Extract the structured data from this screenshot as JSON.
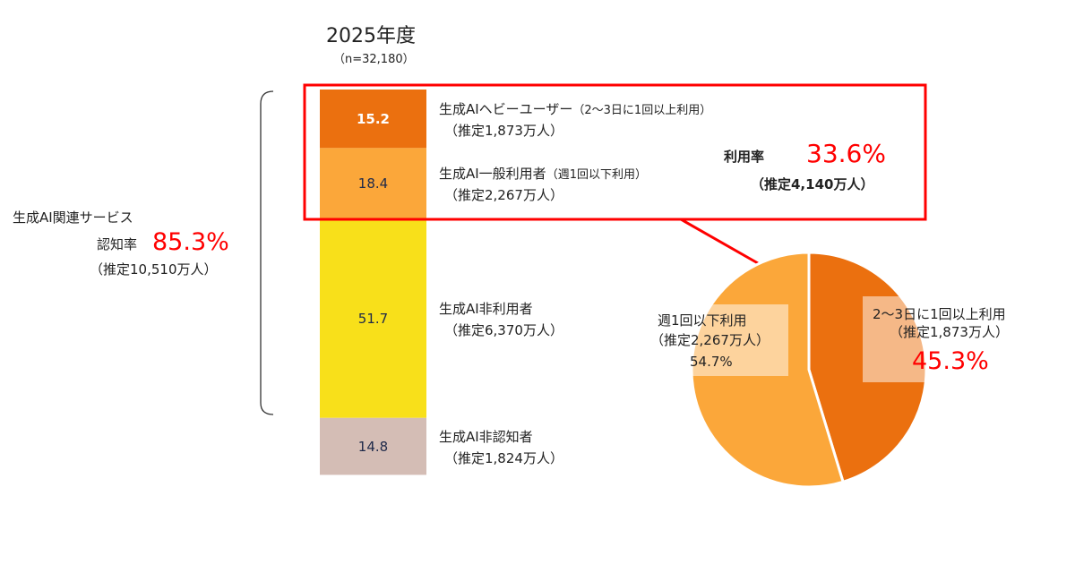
{
  "chart_data": [
    {
      "type": "bar",
      "stacked": true,
      "title": "2025年度",
      "subtitle": "（n=32,180）",
      "unit": "%",
      "segments": [
        {
          "value": 15.2,
          "label": "生成AIヘビーユーザー",
          "note": "（2〜3日に1回以上利用）",
          "estimate": "（推定1,873万人）",
          "color": "#EB700F",
          "label_color": "#ffffff"
        },
        {
          "value": 18.4,
          "label": "生成AI一般利用者",
          "note": "（週1回以下利用）",
          "estimate": "（推定2,267万人）",
          "color": "#FBA73A",
          "label_color": "#1f2a4a"
        },
        {
          "value": 51.7,
          "label": "生成AI非利用者",
          "note": "",
          "estimate": "（推定6,370万人）",
          "color": "#F8E01A",
          "label_color": "#1f2a4a"
        },
        {
          "value": 14.8,
          "label": "生成AI非認知者",
          "note": "",
          "estimate": "（推定1,824万人）",
          "color": "#D4BDB5",
          "label_color": "#1f2a4a"
        }
      ]
    },
    {
      "type": "pie",
      "slices": [
        {
          "value": 45.3,
          "label": "2〜3日に1回以上利用",
          "estimate": "（推定1,873万人）",
          "pct": "45.3%",
          "color": "#EB700F"
        },
        {
          "value": 54.7,
          "label": "週1回以下利用",
          "estimate": "（推定2,267万人）",
          "pct": "54.7%",
          "color": "#FBA73A"
        }
      ]
    }
  ],
  "awareness": {
    "title": "生成AI関連サービス",
    "label": "認知率",
    "value": "85.3%",
    "estimate": "（推定10,510万人）"
  },
  "usage": {
    "label": "利用率",
    "value": "33.6%",
    "estimate": "（推定4,140万人）"
  },
  "colors": {
    "highlight": "#FF0000"
  }
}
